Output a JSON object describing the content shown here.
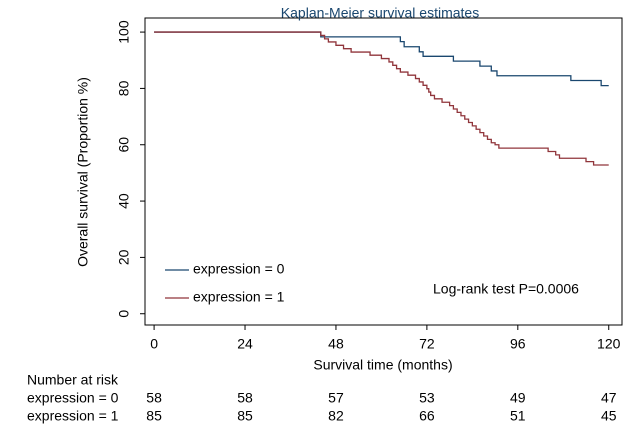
{
  "chart_data": {
    "type": "step",
    "title": "Kaplan-Meier survival estimates",
    "x_label": "Survival time (months)",
    "y_label": "Overall survival (Proportion %)",
    "xlim": [
      -2.4,
      123.5
    ],
    "ylim": [
      -4,
      105
    ],
    "xticks": [
      0,
      24,
      48,
      72,
      96,
      120
    ],
    "yticks": [
      0,
      20,
      40,
      60,
      80,
      100
    ],
    "annotation": "Log-rank test P=0.0006",
    "series": [
      {
        "name": "expression = 0",
        "color": "#1a476f",
        "x": [
          0,
          44,
          65,
          66,
          70,
          71,
          79,
          86,
          89,
          90.5,
          110,
          118,
          120
        ],
        "values": [
          100,
          98.3,
          96.6,
          94.8,
          93,
          91.4,
          89.7,
          87.9,
          86.2,
          84.5,
          82.8,
          81,
          81
        ]
      },
      {
        "name": "expression = 1",
        "color": "#90353b",
        "x": [
          0,
          44,
          45,
          46,
          48,
          50,
          52,
          57,
          60,
          62,
          63,
          64,
          65,
          67,
          69,
          70,
          71,
          72,
          72.5,
          73,
          74,
          76,
          78,
          79,
          80,
          81,
          82,
          83,
          84,
          85,
          86,
          87,
          88,
          89,
          90,
          91,
          104,
          106,
          107,
          114,
          116,
          118,
          120
        ],
        "values": [
          100,
          98.8,
          97.6,
          96.5,
          95.3,
          94.1,
          92.9,
          91.8,
          90.6,
          89.4,
          88.2,
          87,
          85.8,
          84.7,
          83.5,
          82.3,
          81.1,
          79.9,
          78.7,
          77.5,
          76.3,
          75.1,
          73.9,
          72.7,
          71.5,
          70.3,
          69.1,
          67.9,
          66.7,
          65.5,
          64.3,
          63.1,
          61.9,
          60.7,
          60,
          58.8,
          57.6,
          56.4,
          55.2,
          54,
          52.8,
          52.8,
          52.8
        ]
      }
    ],
    "risk_table": {
      "title": "Number at risk",
      "rows": [
        {
          "name": "expression = 0",
          "values": [
            58,
            58,
            57,
            53,
            49,
            47
          ]
        },
        {
          "name": "expression = 1",
          "values": [
            85,
            85,
            82,
            66,
            51,
            45
          ]
        }
      ]
    }
  }
}
